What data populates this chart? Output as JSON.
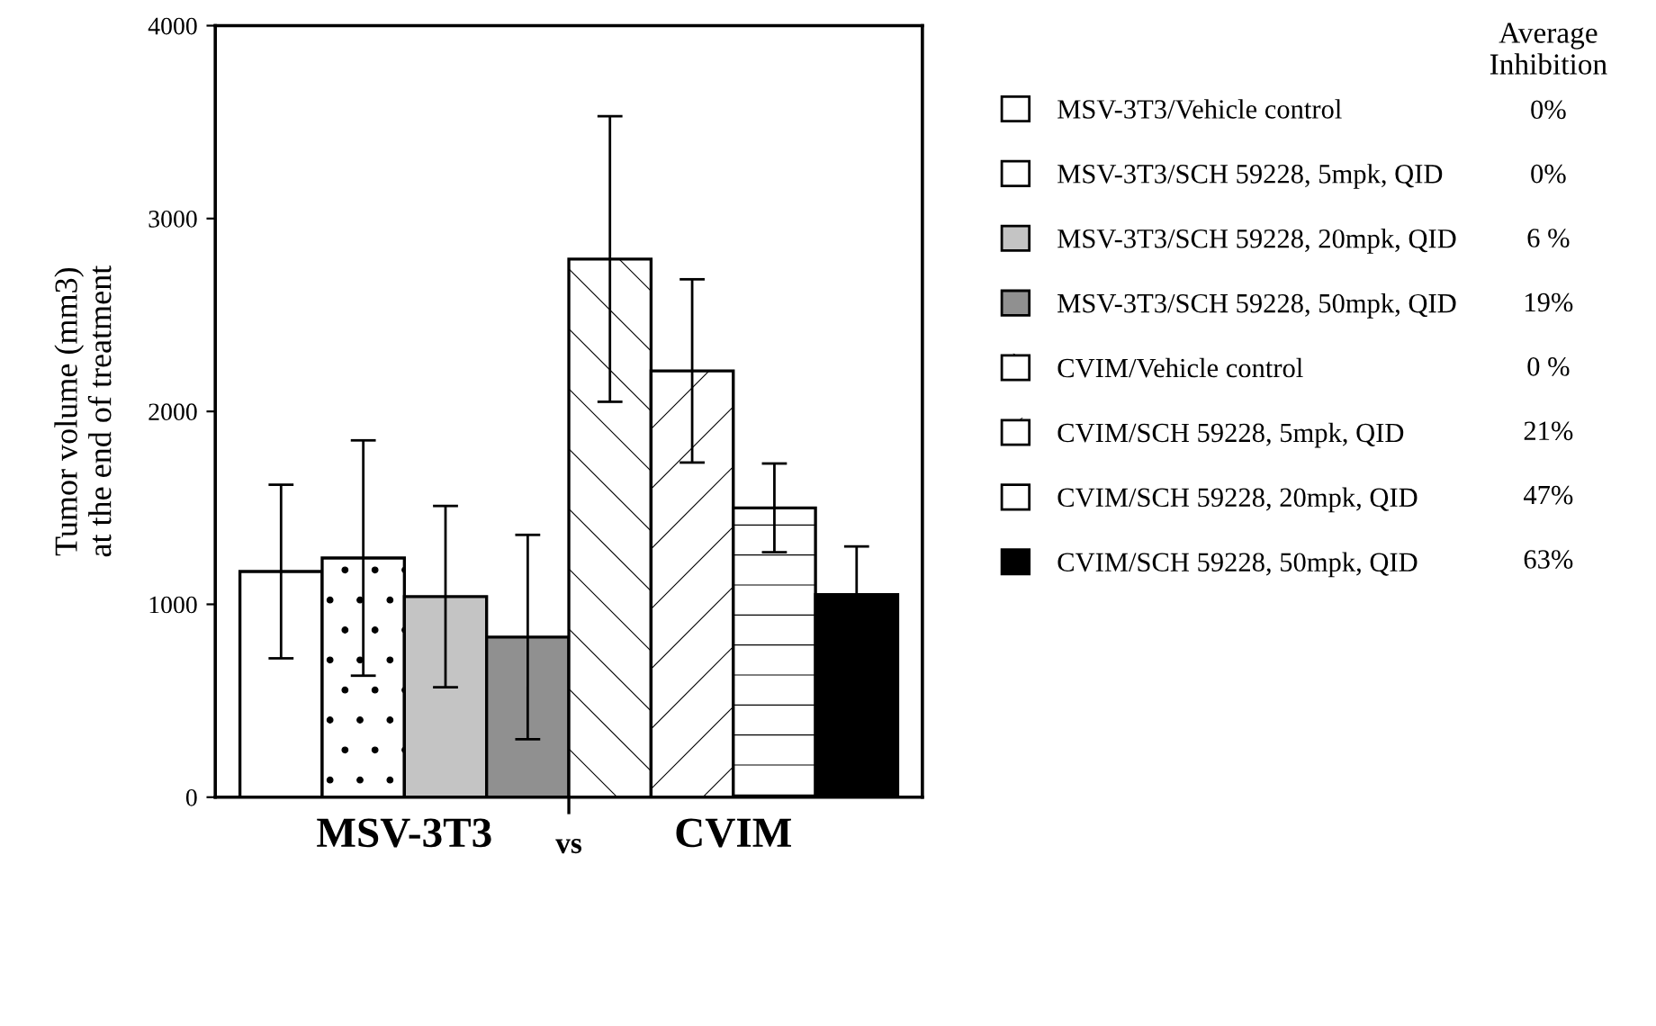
{
  "chart_data": {
    "type": "bar",
    "categories": [
      "MSV-3T3",
      "CVIM"
    ],
    "ylabel": "Tumor volume (mm3)\nat the end of treatment",
    "ylim": [
      0,
      4000
    ],
    "yticks": [
      0,
      1000,
      2000,
      3000,
      4000
    ],
    "grid": false,
    "legend": "right",
    "series": [
      {
        "name": "MSV-3T3/Vehicle control",
        "color": "#ffffff",
        "values": [
          1170,
          null
        ],
        "errors": [
          450,
          null
        ]
      },
      {
        "name": "MSV-3T3/SCH 59228, 5mpk, QID",
        "color": "#ffffff",
        "values": [
          1240,
          null
        ],
        "errors": [
          610,
          null
        ]
      },
      {
        "name": "MSV-3T3/SCH 59228, 20mpk, QID",
        "color": "#c4c4c4",
        "values": [
          1040,
          null
        ],
        "errors": [
          470,
          null
        ]
      },
      {
        "name": "MSV-3T3/SCH 59228, 50mpk, QID",
        "color": "#909090",
        "values": [
          830,
          null
        ],
        "errors": [
          530,
          null
        ]
      },
      {
        "name": "CVIM/Vehicle control",
        "color": "#ffffff",
        "values": [
          null,
          2790
        ],
        "errors": [
          null,
          740
        ]
      },
      {
        "name": "CVIM/SCH 59228, 5mpk, QID",
        "color": "#ffffff",
        "values": [
          null,
          2210
        ],
        "errors": [
          null,
          475
        ]
      },
      {
        "name": "CVIM/SCH 59228, 20mpk, QID",
        "color": "#ffffff",
        "values": [
          null,
          1500
        ],
        "errors": [
          null,
          230
        ]
      },
      {
        "name": "CVIM/SCH 59228, 50mpk, QID",
        "color": "#000000",
        "values": [
          null,
          1050
        ],
        "errors": [
          null,
          250
        ]
      }
    ],
    "annotations": [
      "vs",
      "Average\nInhibition",
      "0%",
      "0%",
      "6 %",
      "19%",
      "0 %",
      "21%",
      "47%",
      "63%"
    ]
  }
}
